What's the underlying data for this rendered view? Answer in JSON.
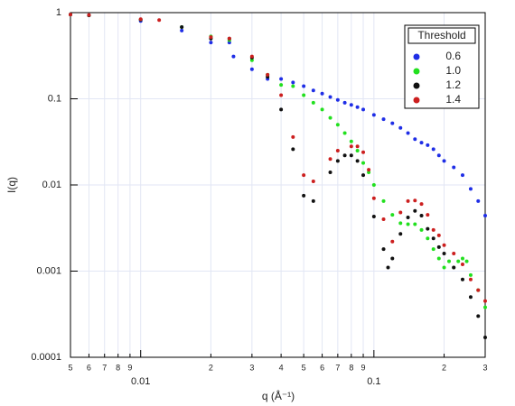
{
  "chart_data": {
    "type": "scatter",
    "x_label": "q (Å⁻¹)",
    "y_label": "I(q)",
    "log_x": true,
    "log_y": true,
    "grid": true,
    "legend_title": "Threshold",
    "legend_position": "upper right",
    "xlim": [
      0.005,
      0.3
    ],
    "ylim": [
      0.0001,
      1
    ],
    "xticks": [
      {
        "value": 0.005,
        "label": "5"
      },
      {
        "value": 0.006,
        "label": "6"
      },
      {
        "value": 0.007,
        "label": "7"
      },
      {
        "value": 0.008,
        "label": "8"
      },
      {
        "value": 0.009,
        "label": "9"
      },
      0.01,
      {
        "value": 0.02,
        "label": "2"
      },
      {
        "value": 0.03,
        "label": "3"
      },
      {
        "value": 0.04,
        "label": "4"
      },
      {
        "value": 0.05,
        "label": "5"
      },
      {
        "value": 0.06,
        "label": "6"
      },
      {
        "value": 0.07,
        "label": "7"
      },
      {
        "value": 0.08,
        "label": "8"
      },
      {
        "value": 0.09,
        "label": "9"
      },
      0.1,
      {
        "value": 0.2,
        "label": "2"
      },
      {
        "value": 0.3,
        "label": "3"
      }
    ],
    "yticks": [
      1,
      0.1,
      0.01,
      0.001,
      0.0001
    ],
    "series": [
      {
        "name": "0.6",
        "color": "#1f2ee6",
        "x": [
          0.005,
          0.006,
          0.01,
          0.015,
          0.02,
          0.024,
          0.025,
          0.03,
          0.035,
          0.04,
          0.045,
          0.05,
          0.055,
          0.06,
          0.065,
          0.07,
          0.075,
          0.08,
          0.085,
          0.09,
          0.1,
          0.11,
          0.12,
          0.13,
          0.14,
          0.15,
          0.16,
          0.17,
          0.18,
          0.19,
          0.2,
          0.22,
          0.24,
          0.26,
          0.28,
          0.3
        ],
        "values": [
          0.95,
          0.93,
          0.8,
          0.62,
          0.45,
          0.45,
          0.31,
          0.22,
          0.17,
          0.17,
          0.155,
          0.14,
          0.125,
          0.115,
          0.105,
          0.097,
          0.09,
          0.085,
          0.08,
          0.075,
          0.065,
          0.058,
          0.052,
          0.046,
          0.04,
          0.034,
          0.031,
          0.029,
          0.026,
          0.022,
          0.019,
          0.016,
          0.013,
          0.009,
          0.0065,
          0.0044
        ]
      },
      {
        "name": "1.0",
        "color": "#22e01f",
        "x": [
          0.005,
          0.006,
          0.01,
          0.015,
          0.02,
          0.024,
          0.03,
          0.035,
          0.04,
          0.045,
          0.05,
          0.055,
          0.06,
          0.065,
          0.07,
          0.075,
          0.08,
          0.085,
          0.09,
          0.095,
          0.1,
          0.11,
          0.12,
          0.13,
          0.14,
          0.15,
          0.16,
          0.17,
          0.18,
          0.19,
          0.2,
          0.21,
          0.22,
          0.23,
          0.24,
          0.25,
          0.26,
          0.28,
          0.3
        ],
        "values": [
          0.95,
          0.93,
          0.83,
          0.68,
          0.53,
          0.48,
          0.28,
          0.19,
          0.145,
          0.14,
          0.11,
          0.09,
          0.075,
          0.06,
          0.05,
          0.04,
          0.032,
          0.025,
          0.018,
          0.014,
          0.01,
          0.0065,
          0.0045,
          0.0036,
          0.0035,
          0.0035,
          0.003,
          0.0024,
          0.0018,
          0.0014,
          0.0011,
          0.0013,
          0.0011,
          0.0013,
          0.0014,
          0.0013,
          0.0009,
          0.0006,
          0.00038
        ]
      },
      {
        "name": "1.2",
        "color": "#111111",
        "x": [
          0.005,
          0.006,
          0.01,
          0.015,
          0.02,
          0.024,
          0.03,
          0.035,
          0.04,
          0.045,
          0.05,
          0.055,
          0.065,
          0.07,
          0.075,
          0.08,
          0.085,
          0.09,
          0.1,
          0.11,
          0.115,
          0.12,
          0.13,
          0.14,
          0.15,
          0.16,
          0.17,
          0.18,
          0.19,
          0.2,
          0.22,
          0.24,
          0.26,
          0.28,
          0.3
        ],
        "values": [
          0.95,
          0.93,
          0.83,
          0.68,
          0.5,
          0.5,
          0.3,
          0.18,
          0.075,
          0.026,
          0.0075,
          0.0065,
          0.014,
          0.019,
          0.022,
          0.022,
          0.019,
          0.013,
          0.0043,
          0.0018,
          0.0011,
          0.0014,
          0.0027,
          0.0042,
          0.005,
          0.0044,
          0.0031,
          0.0024,
          0.0019,
          0.0016,
          0.0011,
          0.0008,
          0.0005,
          0.0003,
          0.00017
        ]
      },
      {
        "name": "1.4",
        "color": "#cc1f1f",
        "x": [
          0.005,
          0.006,
          0.01,
          0.012,
          0.02,
          0.024,
          0.03,
          0.035,
          0.04,
          0.045,
          0.05,
          0.055,
          0.065,
          0.07,
          0.08,
          0.085,
          0.09,
          0.095,
          0.1,
          0.11,
          0.12,
          0.13,
          0.14,
          0.15,
          0.16,
          0.17,
          0.18,
          0.19,
          0.2,
          0.22,
          0.24,
          0.26,
          0.28,
          0.3
        ],
        "values": [
          0.95,
          0.94,
          0.84,
          0.82,
          0.52,
          0.5,
          0.31,
          0.19,
          0.11,
          0.036,
          0.013,
          0.011,
          0.02,
          0.025,
          0.028,
          0.028,
          0.024,
          0.015,
          0.007,
          0.004,
          0.0022,
          0.0048,
          0.0065,
          0.0066,
          0.006,
          0.0045,
          0.003,
          0.0026,
          0.002,
          0.0016,
          0.0012,
          0.0008,
          0.0006,
          0.00045
        ]
      }
    ]
  }
}
